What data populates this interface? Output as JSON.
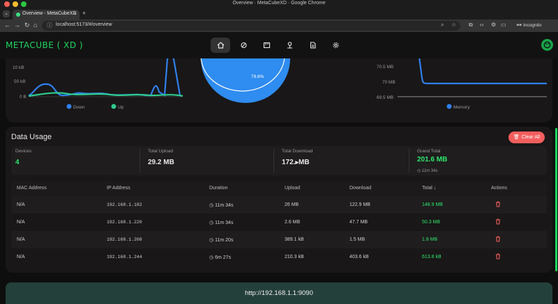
{
  "window": {
    "title": "Overview · MetaCubeXD · Google Chrome"
  },
  "browser": {
    "tab_title": "Overview - MetaCubeXD",
    "url": "localhost:5173/#/overview",
    "incognito_label": "Incognito"
  },
  "app": {
    "brand": "METACUBE",
    "brand_suffix": "( XD )",
    "accent": "#1ed760",
    "nav": [
      "overview",
      "proxies",
      "rules",
      "connections",
      "logs",
      "config"
    ]
  },
  "charts": {
    "traffic": {
      "ticks": [
        "10 kB",
        "50 kB",
        "0 B"
      ],
      "legend": [
        "Down",
        "Up"
      ]
    },
    "pie_label": "79.8%",
    "memory": {
      "ticks": [
        "70.5 MB",
        "70 MB",
        "69.5 MB"
      ],
      "legend": [
        "Memory"
      ]
    }
  },
  "usage": {
    "title": "Data Usage",
    "clear_label": "Clear All",
    "stats": {
      "devices_label": "Devices",
      "devices_value": "4",
      "upload_label": "Total Upload",
      "upload_value": "29.2 MB",
      "download_label": "Total Download",
      "download_value": "172.",
      "download_value_tail": "MB",
      "grand_label": "Grand Total",
      "grand_value": "201.6 MB",
      "grand_sub": "11m 34s"
    },
    "columns": [
      "MAC Address",
      "IP Address",
      "Duration",
      "Upload",
      "Download",
      "Total ↓",
      "Actions"
    ],
    "rows": [
      {
        "mac": "N/A",
        "ip": "192.168.1.182",
        "duration": "11m 34s",
        "upload": "26 MB",
        "download": "122.9 MB",
        "total": "148.9 MB"
      },
      {
        "mac": "N/A",
        "ip": "192.168.1.220",
        "duration": "11m 34s",
        "upload": "2.6 MB",
        "download": "47.7 MB",
        "total": "50.3 MB"
      },
      {
        "mac": "N/A",
        "ip": "192.168.1.208",
        "duration": "11m 20s",
        "upload": "389.1 kB",
        "download": "1.5 MB",
        "total": "1.8 MB"
      },
      {
        "mac": "N/A",
        "ip": "192.168.1.244",
        "duration": "6m 27s",
        "upload": "210.3 kB",
        "download": "403.6 kB",
        "total": "613.8 kB"
      }
    ]
  },
  "footer": {
    "text": "http://192.168.1.1:9090"
  }
}
